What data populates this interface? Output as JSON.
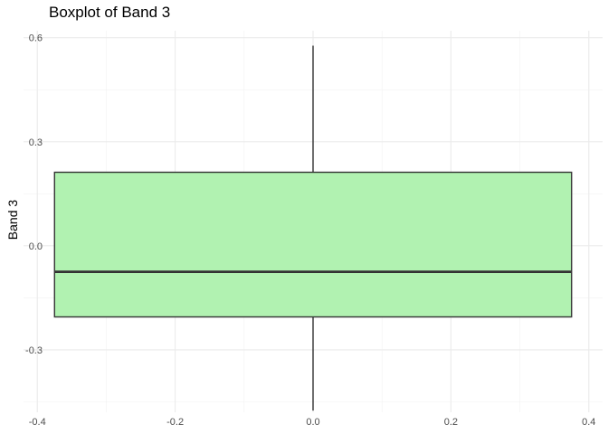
{
  "chart_data": {
    "type": "boxplot",
    "title": "Boxplot of Band 3",
    "xlabel": "",
    "ylabel": "Band 3",
    "xlim": [
      -0.42,
      0.42
    ],
    "ylim": [
      -0.48,
      0.62
    ],
    "x_ticks": [
      -0.4,
      -0.2,
      0.0,
      0.2,
      0.4
    ],
    "x_tick_labels": [
      "-0.4",
      "-0.2",
      "0.0",
      "0.2",
      "0.4"
    ],
    "y_ticks": [
      -0.3,
      0.0,
      0.3,
      0.6
    ],
    "y_tick_labels": [
      "-0.3",
      "0.0",
      "0.3",
      "0.6"
    ],
    "box": {
      "x_center": 0.0,
      "x_left": -0.375,
      "x_right": 0.375,
      "whisker_low": -0.475,
      "q1": -0.205,
      "median": -0.075,
      "q3": 0.212,
      "whisker_high": 0.577
    },
    "fill_color": "#b1f2b1",
    "stroke_color": "#333333",
    "grid": true,
    "legend": "none"
  }
}
